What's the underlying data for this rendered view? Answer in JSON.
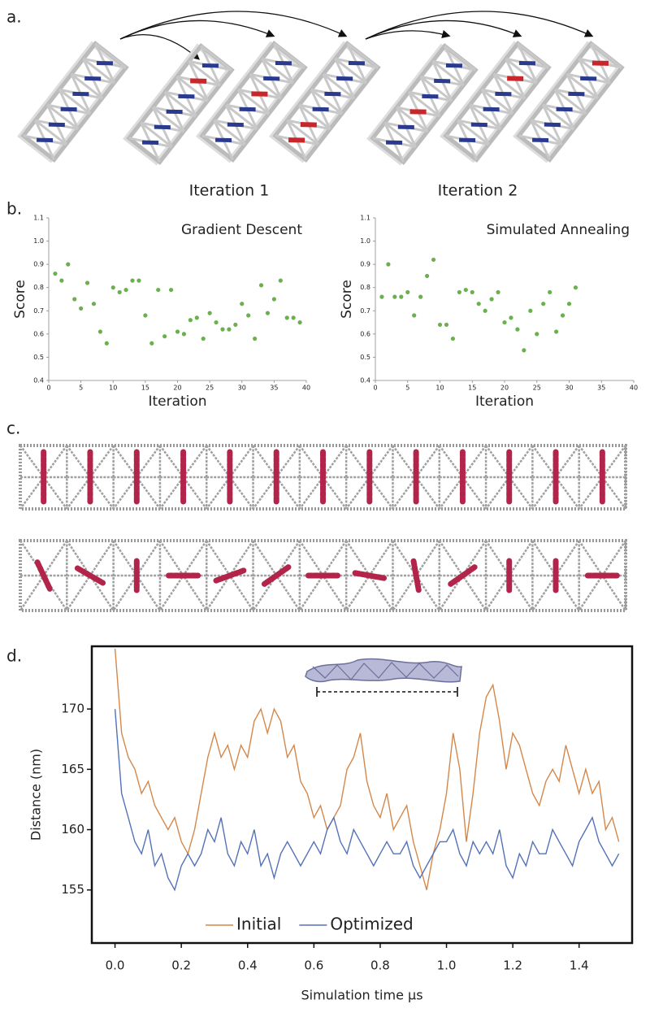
{
  "panel_labels": [
    "a.",
    "b.",
    "c.",
    "d."
  ],
  "figure_a": {
    "captions": [
      "Iteration 1",
      "Iteration 2"
    ]
  },
  "chart_data": [
    {
      "type": "scatter",
      "title": "Gradient Descent",
      "xlabel": "Iteration",
      "ylabel": "Score",
      "color": "#6ab04c",
      "x": [
        1,
        2,
        3,
        4,
        5,
        6,
        7,
        8,
        9,
        10,
        11,
        12,
        13,
        14,
        15,
        16,
        17,
        18,
        19,
        20,
        21,
        22,
        23,
        24,
        25,
        26,
        27,
        28,
        29,
        30,
        31,
        32,
        33,
        34,
        35,
        36,
        37,
        38,
        39
      ],
      "values": [
        0.86,
        0.83,
        0.9,
        0.75,
        0.71,
        0.82,
        0.73,
        0.61,
        0.56,
        0.8,
        0.78,
        0.79,
        0.83,
        0.83,
        0.68,
        0.56,
        0.79,
        0.59,
        0.79,
        0.61,
        0.6,
        0.66,
        0.67,
        0.58,
        0.69,
        0.65,
        0.62,
        0.62,
        0.64,
        0.73,
        0.68,
        0.58,
        0.81,
        0.69,
        0.75,
        0.83,
        0.67,
        0.67,
        0.65
      ],
      "xlim": [
        0,
        40
      ],
      "xticks": [
        0,
        5,
        10,
        15,
        20,
        25,
        30,
        35,
        40
      ],
      "ylim": [
        0.4,
        1.1
      ],
      "yticks": [
        0.4,
        0.5,
        0.6,
        0.7,
        0.8,
        0.9,
        {
          "value": 1,
          "label": "1.0"
        },
        1.1
      ]
    },
    {
      "type": "scatter",
      "title": "Simulated Annealing",
      "xlabel": "Iteration",
      "ylabel": "Score",
      "color": "#6ab04c",
      "x": [
        1,
        2,
        3,
        4,
        5,
        6,
        7,
        8,
        9,
        10,
        11,
        12,
        13,
        14,
        15,
        16,
        17,
        18,
        19,
        20,
        21,
        22,
        23,
        24,
        25,
        26,
        27,
        28,
        29,
        30,
        31
      ],
      "values": [
        0.76,
        0.9,
        0.76,
        0.76,
        0.78,
        0.68,
        0.76,
        0.85,
        0.92,
        0.64,
        0.64,
        0.58,
        0.78,
        0.79,
        0.78,
        0.73,
        0.7,
        0.75,
        0.78,
        0.65,
        0.67,
        0.62,
        0.53,
        0.7,
        0.6,
        0.73,
        0.78,
        0.61,
        0.68,
        0.73,
        0.8
      ],
      "xlim": [
        0,
        40
      ],
      "xticks": [
        0,
        5,
        10,
        15,
        20,
        25,
        30,
        35,
        40
      ],
      "ylim": [
        0.4,
        1.1
      ],
      "yticks": [
        0.4,
        0.5,
        0.6,
        0.7,
        0.8,
        0.9,
        {
          "value": 1,
          "label": "1.0"
        },
        1.1
      ]
    },
    {
      "type": "line",
      "xlabel": "Simulation time μs",
      "ylabel": "Distance (nm)",
      "legend": "lower left",
      "x": [
        0,
        0.02,
        0.04,
        0.06,
        0.08,
        0.1,
        0.12,
        0.14,
        0.16,
        0.18,
        0.2,
        0.22,
        0.24,
        0.26,
        0.28,
        0.3,
        0.32,
        0.34,
        0.36,
        0.38,
        0.4,
        0.42,
        0.44,
        0.46,
        0.48,
        0.5,
        0.52,
        0.54,
        0.56,
        0.58,
        0.6,
        0.62,
        0.64,
        0.66,
        0.68,
        0.7,
        0.72,
        0.74,
        0.76,
        0.78,
        0.8,
        0.82,
        0.84,
        0.86,
        0.88,
        0.9,
        0.92,
        0.94,
        0.96,
        0.98,
        1,
        1.02,
        1.04,
        1.06,
        1.08,
        1.1,
        1.12,
        1.14,
        1.16,
        1.18,
        1.2,
        1.22,
        1.24,
        1.26,
        1.28,
        1.3,
        1.32,
        1.34,
        1.36,
        1.38,
        1.4,
        1.42,
        1.44,
        1.46,
        1.48,
        1.5,
        1.52
      ],
      "series": [
        {
          "name": "Initial",
          "color": "#d4874a",
          "values": [
            175,
            168,
            166,
            165,
            163,
            164,
            162,
            161,
            160,
            161,
            159,
            158,
            160,
            163,
            166,
            168,
            166,
            167,
            165,
            167,
            166,
            169,
            170,
            168,
            170,
            169,
            166,
            167,
            164,
            163,
            161,
            162,
            160,
            161,
            162,
            165,
            166,
            168,
            164,
            162,
            161,
            163,
            160,
            161,
            162,
            159,
            157,
            155,
            158,
            160,
            163,
            168,
            165,
            159,
            163,
            168,
            171,
            172,
            169,
            165,
            168,
            167,
            165,
            163,
            162,
            164,
            165,
            164,
            167,
            165,
            163,
            165,
            163,
            164,
            160,
            161,
            159
          ]
        },
        {
          "name": "Optimized",
          "color": "#5470b8",
          "values": [
            170,
            163,
            161,
            159,
            158,
            160,
            157,
            158,
            156,
            155,
            157,
            158,
            157,
            158,
            160,
            159,
            161,
            158,
            157,
            159,
            158,
            160,
            157,
            158,
            156,
            158,
            159,
            158,
            157,
            158,
            159,
            158,
            160,
            161,
            159,
            158,
            160,
            159,
            158,
            157,
            158,
            159,
            158,
            158,
            159,
            157,
            156,
            157,
            158,
            159,
            159,
            160,
            158,
            157,
            159,
            158,
            159,
            158,
            160,
            157,
            156,
            158,
            157,
            159,
            158,
            158,
            160,
            159,
            158,
            157,
            159,
            160,
            161,
            159,
            158,
            157,
            158
          ]
        }
      ],
      "xlim": [
        -0.07,
        1.56
      ],
      "xticks": [
        {
          "value": 0,
          "label": "0.0"
        },
        0.2,
        0.4,
        0.6,
        0.8,
        {
          "value": 1,
          "label": "1.0"
        },
        1.2,
        1.4
      ],
      "ylim": [
        150.6,
        175.2
      ],
      "yticks": [
        155,
        160,
        165,
        170
      ]
    }
  ]
}
